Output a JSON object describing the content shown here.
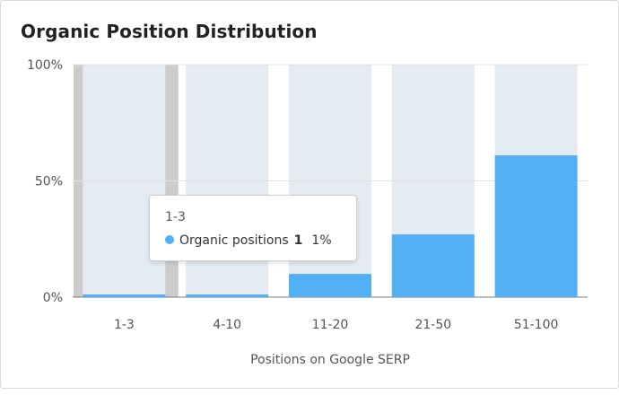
{
  "card": {
    "title": "Organic Position Distribution"
  },
  "chart_data": {
    "type": "bar",
    "title": "Organic Position Distribution",
    "xlabel": "Positions on Google SERP",
    "ylabel": "",
    "categories": [
      "1-3",
      "4-10",
      "11-20",
      "21-50",
      "51-100"
    ],
    "series": [
      {
        "name": "Organic positions",
        "values": [
          1,
          1,
          10,
          27,
          61
        ]
      }
    ],
    "ylim": [
      0,
      100
    ],
    "yticks": [
      "0%",
      "50%",
      "100%"
    ],
    "grid": true,
    "highlighted_category": "1-3",
    "colors": {
      "bar": "#54b0f5",
      "background": "#e4ebf2",
      "highlight": "#cccccc"
    }
  },
  "tooltip": {
    "header": "1-3",
    "series_name": "Organic positions",
    "value": "1",
    "percent": "1%",
    "dot_color": "#54b0f5"
  }
}
